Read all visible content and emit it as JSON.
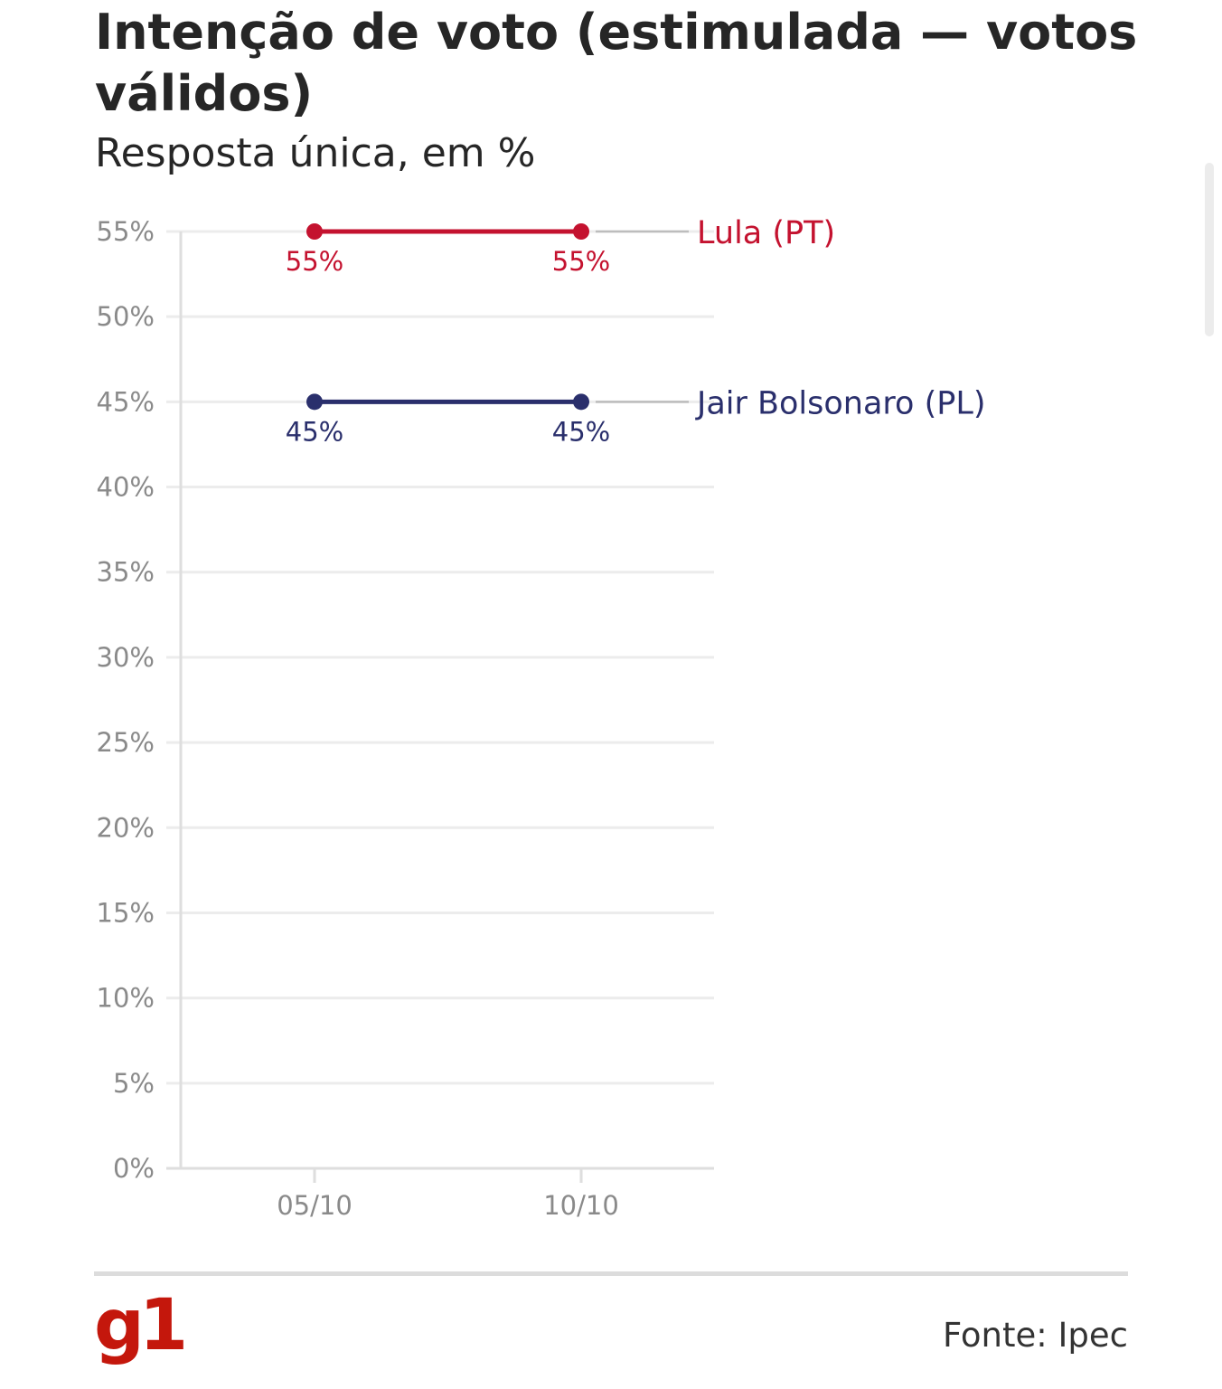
{
  "brand": {
    "logo_text": "g1",
    "accent": "#c4170c"
  },
  "source_text": "Fonte: Ipec",
  "chart_data": {
    "type": "line",
    "title": "Intenção de voto (estimulada — votos válidos)",
    "subtitle": "Resposta única, em %",
    "xlabel": "",
    "ylabel": "",
    "categories": [
      "05/10",
      "10/10"
    ],
    "ylim": [
      0,
      55
    ],
    "yticks": [
      0,
      5,
      10,
      15,
      20,
      25,
      30,
      35,
      40,
      45,
      50,
      55
    ],
    "ytick_suffix": "%",
    "grid": true,
    "legend": "inline-right",
    "series": [
      {
        "name": "Lula (PT)",
        "values": [
          55,
          55
        ],
        "labels": [
          "55%",
          "55%"
        ],
        "color": "#c4122f"
      },
      {
        "name": "Jair Bolsonaro (PL)",
        "values": [
          45,
          45
        ],
        "labels": [
          "45%",
          "45%"
        ],
        "color": "#2a2f6c"
      }
    ]
  }
}
